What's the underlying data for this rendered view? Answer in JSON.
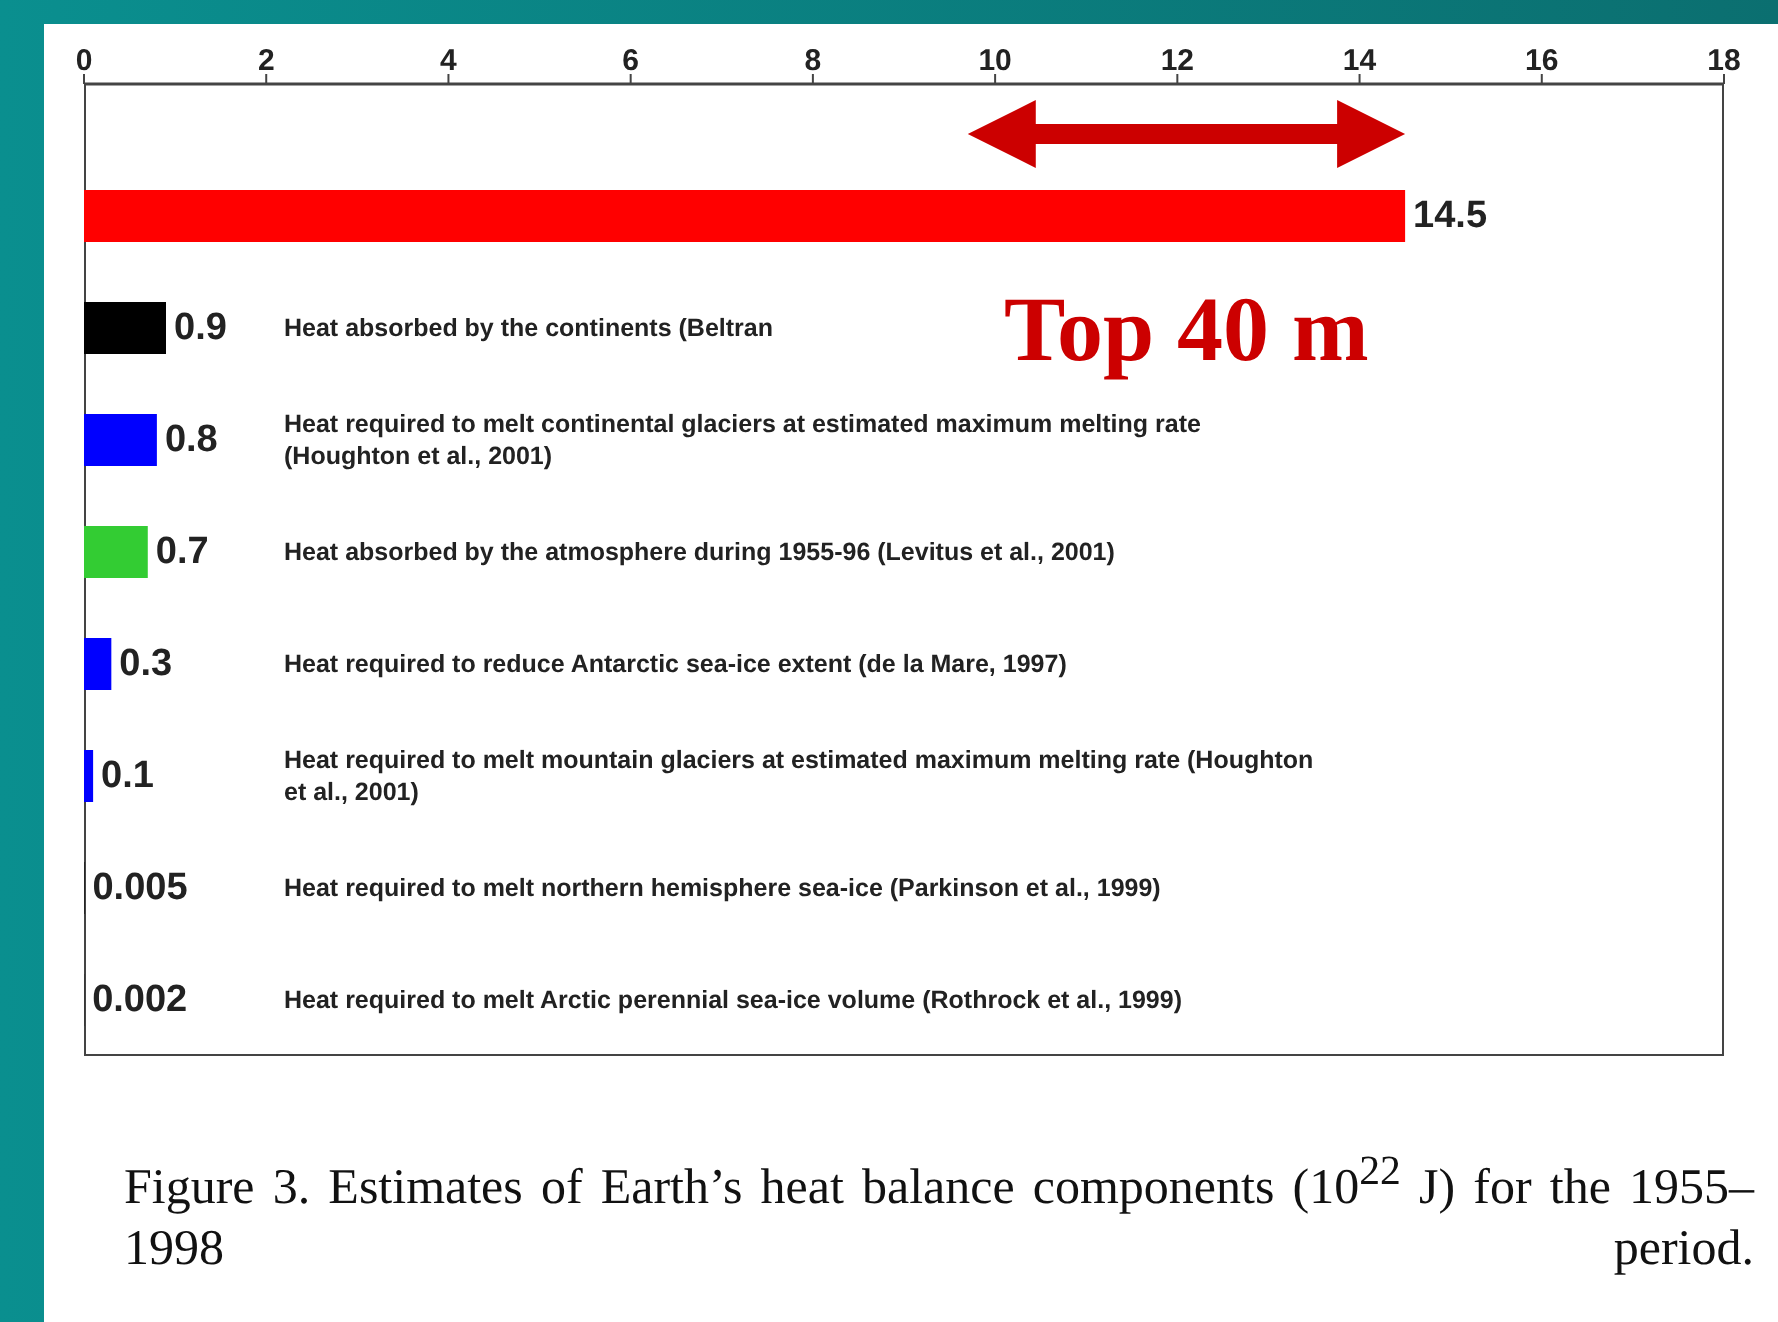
{
  "chart_data": {
    "type": "bar",
    "orientation": "horizontal",
    "categories": [
      null,
      "Heat absorbed by the continents (Beltran",
      "Heat required to melt continental glaciers at estimated maximum melting rate (Houghton et al., 2001)",
      "Heat absorbed by the atmosphere during 1955-96 (Levitus et al., 2001)",
      "Heat required to reduce Antarctic sea-ice extent (de la Mare, 1997)",
      "Heat required to melt mountain glaciers at estimated maximum melting rate (Houghton et al., 2001)",
      "Heat required to melt northern hemisphere sea-ice (Parkinson et al., 1999)",
      "Heat required to melt Arctic perennial sea-ice volume (Rothrock et al., 1999)"
    ],
    "values": [
      14.5,
      0.9,
      0.8,
      0.7,
      0.3,
      0.1,
      0.005,
      0.002
    ],
    "colors": [
      "#ff0000",
      "#000000",
      "#0000ff",
      "#33cc33",
      "#0000ff",
      "#0000ff",
      "#000000",
      "#000000"
    ],
    "xlim": [
      0,
      18
    ],
    "xticks": [
      0,
      2,
      4,
      6,
      8,
      10,
      12,
      14,
      16,
      18
    ],
    "data_labels": true,
    "grid": false,
    "legend": false,
    "annotations": [
      "Figure 3.  Estimates of Earth’s heat balance components (10$^{22}$ J) for the 1955–1998 period.",
      "Top 40 m"
    ]
  }
}
